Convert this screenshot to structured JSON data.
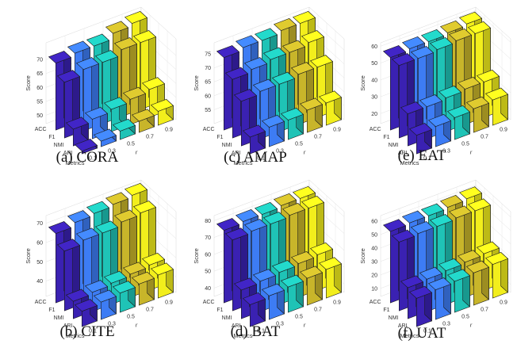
{
  "chart_data": [
    {
      "type": "bar3d",
      "caption": "(a) CORA",
      "zlabel": "Score",
      "xlabel": "r",
      "ylabel": "Metrics",
      "x_ticks": [
        "0.1",
        "0.3",
        "0.5",
        "0.7",
        "0.9"
      ],
      "y_ticks": [
        "ACC",
        "F1",
        "NMI",
        "ARI"
      ],
      "z_ticks": [
        "50",
        "55",
        "60",
        "65",
        "70"
      ],
      "zlim": [
        47,
        76
      ],
      "colors": [
        "#3a21b2",
        "#3d7cf4",
        "#1fc3b6",
        "#c8b52a",
        "#f2ee1c"
      ],
      "series": [
        {
          "name": "ACC",
          "values": [
            71,
            72,
            72,
            74,
            75
          ]
        },
        {
          "name": "F1",
          "values": [
            67,
            69,
            69,
            71,
            71
          ]
        },
        {
          "name": "NMI",
          "values": [
            53,
            54,
            55,
            56,
            57
          ]
        },
        {
          "name": "ARI",
          "values": [
            48,
            49,
            50,
            51,
            52
          ]
        }
      ]
    },
    {
      "type": "bar3d",
      "caption": "(b) CITE",
      "zlabel": "Score",
      "xlabel": "r",
      "ylabel": "Metrics",
      "x_ticks": [
        "0.1",
        "0.3",
        "0.5",
        "0.7",
        "0.9"
      ],
      "y_ticks": [
        "ACC",
        "F1",
        "NMI",
        "ARI"
      ],
      "z_ticks": [
        "40",
        "50",
        "60",
        "70"
      ],
      "zlim": [
        32,
        74
      ],
      "colors": [
        "#3a21b2",
        "#3d7cf4",
        "#1fc3b6",
        "#c8b52a",
        "#f2ee1c"
      ],
      "series": [
        {
          "name": "ACC",
          "values": [
            68,
            70,
            71,
            72,
            73
          ]
        },
        {
          "name": "F1",
          "values": [
            63,
            65,
            65,
            67,
            68
          ]
        },
        {
          "name": "NMI",
          "values": [
            41,
            42,
            43,
            44,
            45
          ]
        },
        {
          "name": "ARI",
          "values": [
            40,
            41,
            42,
            43,
            44
          ]
        }
      ]
    },
    {
      "type": "bar3d",
      "caption": "(c) AMAP",
      "zlabel": "Score",
      "xlabel": "r",
      "ylabel": "Metrics",
      "x_ticks": [
        "0.1",
        "0.3",
        "0.5",
        "0.7",
        "0.9"
      ],
      "y_ticks": [
        "ACC",
        "F1",
        "NMI",
        "ARI"
      ],
      "z_ticks": [
        "55",
        "60",
        "65",
        "70",
        "75"
      ],
      "zlim": [
        50,
        79
      ],
      "colors": [
        "#3a21b2",
        "#3d7cf4",
        "#1fc3b6",
        "#c8b52a",
        "#f2ee1c"
      ],
      "series": [
        {
          "name": "ACC",
          "values": [
            76,
            77,
            77,
            78,
            78
          ]
        },
        {
          "name": "F1",
          "values": [
            71,
            72,
            73,
            73,
            74
          ]
        },
        {
          "name": "NMI",
          "values": [
            66,
            67,
            67,
            68,
            68
          ]
        },
        {
          "name": "ARI",
          "values": [
            56,
            57,
            57,
            58,
            58
          ]
        }
      ]
    },
    {
      "type": "bar3d",
      "caption": "(d) BAT",
      "zlabel": "Score",
      "xlabel": "r",
      "ylabel": "Metrics",
      "x_ticks": [
        "0.1",
        "0.3",
        "0.5",
        "0.7",
        "0.9"
      ],
      "y_ticks": [
        "ACC",
        "F1",
        "NMI",
        "ARI"
      ],
      "z_ticks": [
        "40",
        "50",
        "60",
        "70",
        "80"
      ],
      "zlim": [
        35,
        83
      ],
      "colors": [
        "#3a21b2",
        "#3d7cf4",
        "#1fc3b6",
        "#c8b52a",
        "#f2ee1c"
      ],
      "series": [
        {
          "name": "ACC",
          "values": [
            78,
            79,
            79,
            80,
            80
          ]
        },
        {
          "name": "F1",
          "values": [
            77,
            78,
            78,
            79,
            79
          ]
        },
        {
          "name": "NMI",
          "values": [
            52,
            53,
            54,
            55,
            56
          ]
        },
        {
          "name": "ARI",
          "values": [
            48,
            49,
            50,
            51,
            52
          ]
        }
      ]
    },
    {
      "type": "bar3d",
      "caption": "(e) EAT",
      "zlabel": "Score",
      "xlabel": "r",
      "ylabel": "Metrics",
      "x_ticks": [
        "0.1",
        "0.3",
        "0.5",
        "0.7",
        "0.9"
      ],
      "y_ticks": [
        "ACC",
        "F1",
        "NMI",
        "ARI"
      ],
      "z_ticks": [
        "20",
        "30",
        "40",
        "50",
        "60"
      ],
      "zlim": [
        14,
        62
      ],
      "colors": [
        "#3a21b2",
        "#3d7cf4",
        "#1fc3b6",
        "#c8b52a",
        "#f2ee1c"
      ],
      "series": [
        {
          "name": "ACC",
          "values": [
            57,
            58,
            58,
            59,
            60
          ]
        },
        {
          "name": "F1",
          "values": [
            57,
            57,
            58,
            59,
            59
          ]
        },
        {
          "name": "NMI",
          "values": [
            33,
            33,
            34,
            35,
            35
          ]
        },
        {
          "name": "ARI",
          "values": [
            25,
            26,
            27,
            28,
            29
          ]
        }
      ]
    },
    {
      "type": "bar3d",
      "caption": "(f) UAT",
      "zlabel": "Score",
      "xlabel": "r",
      "ylabel": "Metrics",
      "x_ticks": [
        "0.1",
        "0.3",
        "0.5",
        "0.7",
        "0.9"
      ],
      "y_ticks": [
        "ACC",
        "F1",
        "NMI",
        "ARI"
      ],
      "z_ticks": [
        "10",
        "20",
        "30",
        "40",
        "50",
        "60"
      ],
      "zlim": [
        4,
        64
      ],
      "colors": [
        "#3a21b2",
        "#3d7cf4",
        "#1fc3b6",
        "#c8b52a",
        "#f2ee1c"
      ],
      "series": [
        {
          "name": "ACC",
          "values": [
            57,
            58,
            58,
            59,
            60
          ]
        },
        {
          "name": "F1",
          "values": [
            55,
            56,
            56,
            57,
            57
          ]
        },
        {
          "name": "NMI",
          "values": [
            27,
            28,
            29,
            30,
            31
          ]
        },
        {
          "name": "ARI",
          "values": [
            25,
            26,
            27,
            28,
            29
          ]
        }
      ]
    }
  ]
}
